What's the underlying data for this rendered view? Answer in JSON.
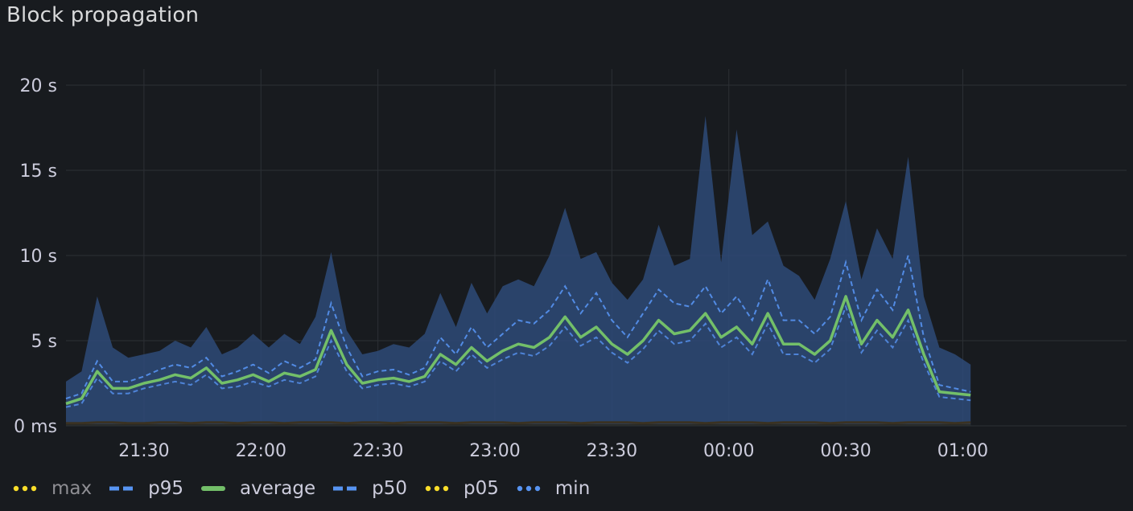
{
  "panel": {
    "title": "Block propagation"
  },
  "colors": {
    "background": "#181b1f",
    "grid": "#2c3035",
    "text": "#ccccdc",
    "band": "#2e4a78",
    "max_legend": "#fade2a",
    "p95": "#5794f2",
    "average": "#73bf69",
    "p50": "#5794f2",
    "p05": "#fade2a",
    "min": "#5794f2"
  },
  "legend": [
    {
      "key": "max",
      "label": "max",
      "style": "dots",
      "color": "#fade2a",
      "dim": true
    },
    {
      "key": "p95",
      "label": "p95",
      "style": "dashes",
      "color": "#5794f2",
      "dim": false
    },
    {
      "key": "average",
      "label": "average",
      "style": "solid",
      "color": "#73bf69",
      "dim": false
    },
    {
      "key": "p50",
      "label": "p50",
      "style": "dashes",
      "color": "#5794f2",
      "dim": false
    },
    {
      "key": "p05",
      "label": "p05",
      "style": "dots",
      "color": "#fade2a",
      "dim": false
    },
    {
      "key": "min",
      "label": "min",
      "style": "dots",
      "color": "#5794f2",
      "dim": false
    }
  ],
  "chart_data": {
    "type": "area",
    "title": "Block propagation",
    "ylabel": "",
    "xlabel": "",
    "ylim": [
      0,
      20
    ],
    "y_ticks": [
      {
        "value": 0,
        "label": "0 ms"
      },
      {
        "value": 5,
        "label": "5 s"
      },
      {
        "value": 10,
        "label": "10 s"
      },
      {
        "value": 15,
        "label": "15 s"
      },
      {
        "value": 20,
        "label": "20 s"
      }
    ],
    "x_range_minutes": [
      1270,
      1542
    ],
    "x_ticks": [
      {
        "minute": 1290,
        "label": "21:30"
      },
      {
        "minute": 1320,
        "label": "22:00"
      },
      {
        "minute": 1350,
        "label": "22:30"
      },
      {
        "minute": 1380,
        "label": "23:00"
      },
      {
        "minute": 1410,
        "label": "23:30"
      },
      {
        "minute": 1440,
        "label": "00:00"
      },
      {
        "minute": 1470,
        "label": "00:30"
      },
      {
        "minute": 1500,
        "label": "01:00"
      }
    ],
    "grid": true,
    "legend_position": "bottom",
    "series_minutes": [
      1270,
      1274,
      1278,
      1282,
      1286,
      1290,
      1294,
      1298,
      1302,
      1306,
      1310,
      1314,
      1318,
      1322,
      1326,
      1330,
      1334,
      1338,
      1342,
      1346,
      1350,
      1354,
      1358,
      1362,
      1366,
      1370,
      1374,
      1378,
      1382,
      1386,
      1390,
      1394,
      1398,
      1402,
      1406,
      1410,
      1414,
      1418,
      1422,
      1426,
      1430,
      1434,
      1438,
      1442,
      1446,
      1450,
      1454,
      1458,
      1462,
      1466,
      1470,
      1474,
      1478,
      1482,
      1486,
      1490,
      1494,
      1498,
      1502
    ],
    "series": [
      {
        "name": "max",
        "values": [
          2.6,
          3.2,
          7.6,
          4.6,
          4.0,
          4.2,
          4.4,
          5.0,
          4.6,
          5.8,
          4.2,
          4.6,
          5.4,
          4.6,
          5.4,
          4.8,
          6.4,
          10.2,
          5.6,
          4.2,
          4.4,
          4.8,
          4.6,
          5.4,
          7.8,
          5.8,
          8.4,
          6.6,
          8.2,
          8.6,
          8.2,
          10.0,
          12.8,
          9.8,
          10.2,
          8.4,
          7.4,
          8.6,
          11.8,
          9.4,
          9.8,
          18.2,
          9.6,
          17.4,
          11.2,
          12.0,
          9.4,
          8.8,
          7.4,
          9.8,
          13.2,
          8.6,
          11.6,
          9.8,
          15.8,
          7.6,
          4.6,
          4.2,
          3.6
        ]
      },
      {
        "name": "p95",
        "values": [
          1.6,
          1.9,
          3.8,
          2.6,
          2.6,
          2.9,
          3.3,
          3.6,
          3.4,
          4.0,
          2.9,
          3.2,
          3.6,
          3.1,
          3.8,
          3.4,
          3.9,
          7.2,
          4.6,
          2.9,
          3.2,
          3.3,
          3.0,
          3.4,
          5.2,
          4.2,
          5.8,
          4.6,
          5.4,
          6.2,
          6.0,
          6.8,
          8.2,
          6.6,
          7.8,
          6.2,
          5.2,
          6.6,
          8.0,
          7.2,
          7.0,
          8.2,
          6.6,
          7.6,
          6.2,
          8.6,
          6.2,
          6.2,
          5.4,
          6.4,
          9.6,
          6.2,
          8.0,
          6.8,
          10.0,
          5.2,
          2.4,
          2.2,
          2.0
        ]
      },
      {
        "name": "average",
        "values": [
          1.3,
          1.6,
          3.2,
          2.2,
          2.2,
          2.5,
          2.7,
          3.0,
          2.8,
          3.4,
          2.5,
          2.7,
          3.0,
          2.6,
          3.1,
          2.9,
          3.3,
          5.6,
          3.6,
          2.5,
          2.7,
          2.8,
          2.6,
          2.9,
          4.2,
          3.6,
          4.6,
          3.8,
          4.4,
          4.8,
          4.6,
          5.2,
          6.4,
          5.2,
          5.8,
          4.8,
          4.2,
          5.0,
          6.2,
          5.4,
          5.6,
          6.6,
          5.2,
          5.8,
          4.8,
          6.6,
          4.8,
          4.8,
          4.2,
          5.0,
          7.6,
          4.8,
          6.2,
          5.2,
          6.8,
          4.2,
          2.0,
          1.9,
          1.8
        ]
      },
      {
        "name": "p50",
        "values": [
          1.1,
          1.3,
          2.8,
          1.9,
          1.9,
          2.2,
          2.4,
          2.6,
          2.4,
          3.0,
          2.2,
          2.3,
          2.6,
          2.3,
          2.7,
          2.5,
          2.9,
          5.0,
          3.2,
          2.2,
          2.4,
          2.5,
          2.3,
          2.6,
          3.8,
          3.2,
          4.2,
          3.4,
          3.9,
          4.3,
          4.1,
          4.7,
          5.8,
          4.7,
          5.2,
          4.3,
          3.7,
          4.5,
          5.6,
          4.8,
          5.0,
          6.0,
          4.6,
          5.2,
          4.2,
          6.0,
          4.2,
          4.2,
          3.7,
          4.5,
          7.0,
          4.3,
          5.6,
          4.6,
          6.2,
          3.7,
          1.7,
          1.6,
          1.5
        ]
      },
      {
        "name": "p05",
        "values": [
          0.15,
          0.15,
          0.2,
          0.2,
          0.15,
          0.15,
          0.2,
          0.2,
          0.15,
          0.2,
          0.2,
          0.15,
          0.2,
          0.2,
          0.15,
          0.2,
          0.2,
          0.2,
          0.15,
          0.2,
          0.2,
          0.15,
          0.2,
          0.2,
          0.2,
          0.15,
          0.2,
          0.2,
          0.2,
          0.15,
          0.2,
          0.2,
          0.2,
          0.15,
          0.2,
          0.2,
          0.2,
          0.15,
          0.2,
          0.2,
          0.2,
          0.15,
          0.2,
          0.2,
          0.2,
          0.15,
          0.2,
          0.2,
          0.2,
          0.15,
          0.2,
          0.2,
          0.2,
          0.15,
          0.2,
          0.2,
          0.2,
          0.15,
          0.2
        ]
      },
      {
        "name": "min",
        "values": [
          0.05,
          0.05,
          0.05,
          0.05,
          0.05,
          0.05,
          0.05,
          0.05,
          0.05,
          0.05,
          0.05,
          0.05,
          0.05,
          0.05,
          0.05,
          0.05,
          0.05,
          0.05,
          0.05,
          0.05,
          0.05,
          0.05,
          0.05,
          0.05,
          0.05,
          0.05,
          0.05,
          0.05,
          0.05,
          0.05,
          0.05,
          0.05,
          0.05,
          0.05,
          0.05,
          0.05,
          0.05,
          0.05,
          0.05,
          0.05,
          0.05,
          0.05,
          0.05,
          0.05,
          0.05,
          0.05,
          0.05,
          0.05,
          0.05,
          0.05,
          0.05,
          0.05,
          0.05,
          0.05,
          0.05,
          0.05,
          0.05,
          0.05,
          0.05
        ]
      }
    ]
  }
}
